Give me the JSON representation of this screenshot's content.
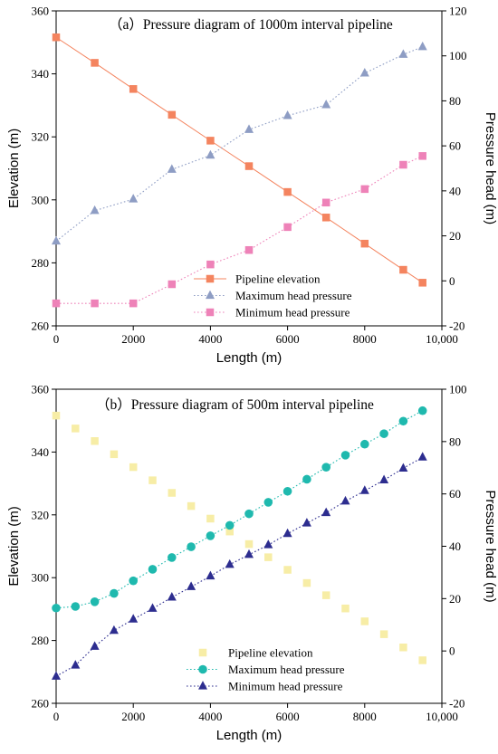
{
  "chart_data": [
    {
      "type": "line",
      "title": "（a）Pressure diagram of 1000m interval pipeline",
      "xlabel": "Length (m)",
      "ylabel_left": "Elevation (m)",
      "ylabel_right": "Pressure head (m)",
      "xlim": [
        0,
        10000
      ],
      "ylim_left": [
        260,
        360
      ],
      "ylim_right": [
        -20,
        120
      ],
      "x_ticks": [
        "0",
        "2000",
        "4000",
        "6000",
        "8000",
        "10,000"
      ],
      "y_left_ticks": [
        "260",
        "280",
        "300",
        "320",
        "340",
        "360"
      ],
      "y_right_ticks": [
        "-20",
        "0",
        "20",
        "40",
        "60",
        "80",
        "100",
        "120"
      ],
      "grid": false,
      "legend_position": "bottom-right",
      "series": [
        {
          "name": "Pipeline elevation",
          "axis": "left",
          "marker": "square",
          "color": "#F4845F",
          "line": "solid",
          "x": [
            0,
            1000,
            2000,
            3000,
            4000,
            5000,
            6000,
            7000,
            8000,
            9000,
            9500
          ],
          "y": [
            351.6,
            343.5,
            335.2,
            327.0,
            318.8,
            310.7,
            302.5,
            294.4,
            286.1,
            277.8,
            273.7
          ]
        },
        {
          "name": "Maximum head pressure",
          "axis": "right",
          "marker": "triangle",
          "color": "#8E9DC4",
          "line": "dotted",
          "x": [
            0,
            1000,
            2000,
            3000,
            4000,
            5000,
            6000,
            7000,
            8000,
            9000,
            9500
          ],
          "y": [
            17.6,
            31.2,
            36.3,
            49.5,
            55.8,
            67.2,
            73.4,
            78.2,
            92.3,
            100.6,
            104.0
          ]
        },
        {
          "name": "Minimum head pressure",
          "axis": "right",
          "marker": "square",
          "color": "#EE82B8",
          "line": "dotted",
          "x": [
            0,
            1000,
            2000,
            3000,
            4000,
            5000,
            6000,
            7000,
            8000,
            9000,
            9500
          ],
          "y": [
            -10.0,
            -10.0,
            -10.0,
            -1.5,
            7.3,
            13.7,
            23.9,
            34.8,
            40.8,
            51.6,
            55.5
          ]
        }
      ]
    },
    {
      "type": "line",
      "title": "（b）Pressure diagram of 500m interval pipeline",
      "xlabel": "Length (m)",
      "ylabel_left": "Elevation (m)",
      "ylabel_right": "Pressure head (m)",
      "xlim": [
        0,
        10000
      ],
      "ylim_left": [
        260,
        360
      ],
      "ylim_right": [
        -20,
        100
      ],
      "x_ticks": [
        "0",
        "2000",
        "4000",
        "6000",
        "8000",
        "10,000"
      ],
      "y_left_ticks": [
        "260",
        "280",
        "300",
        "320",
        "340",
        "360"
      ],
      "y_right_ticks": [
        "-20",
        "0",
        "20",
        "40",
        "60",
        "80",
        "100"
      ],
      "grid": false,
      "legend_position": "bottom-center",
      "series": [
        {
          "name": "Pipeline elevation",
          "axis": "left",
          "marker": "square",
          "color": "#F7EDA6",
          "line": "none",
          "x": [
            0,
            500,
            1000,
            1500,
            2000,
            2500,
            3000,
            3500,
            4000,
            4500,
            5000,
            5500,
            6000,
            6500,
            7000,
            7500,
            8000,
            8500,
            9000,
            9500
          ],
          "y": [
            351.6,
            347.5,
            343.5,
            339.3,
            335.2,
            331.0,
            327.0,
            322.8,
            318.8,
            314.7,
            310.7,
            306.5,
            302.5,
            298.3,
            294.4,
            290.2,
            286.1,
            282.0,
            277.8,
            273.7
          ]
        },
        {
          "name": "Maximum head pressure",
          "axis": "right",
          "marker": "circle",
          "color": "#1FB9AE",
          "line": "dotted",
          "x": [
            0,
            500,
            1000,
            1500,
            2000,
            2500,
            3000,
            3500,
            4000,
            4500,
            5000,
            5500,
            6000,
            6500,
            7000,
            7500,
            8000,
            8500,
            9000,
            9500
          ],
          "y": [
            16.4,
            17.0,
            18.8,
            22.0,
            26.8,
            31.2,
            35.7,
            39.8,
            44.0,
            48.0,
            52.4,
            56.8,
            61.0,
            65.6,
            70.2,
            74.8,
            79.0,
            83.0,
            87.8,
            91.8
          ]
        },
        {
          "name": "Minimum head pressure",
          "axis": "right",
          "marker": "triangle",
          "color": "#2D2D8F",
          "line": "dotted",
          "x": [
            0,
            500,
            1000,
            1500,
            2000,
            2500,
            3000,
            3500,
            4000,
            4500,
            5000,
            5500,
            6000,
            6500,
            7000,
            7500,
            8000,
            8500,
            9000,
            9500
          ],
          "y": [
            -9.7,
            -5.5,
            1.7,
            7.8,
            12.1,
            16.2,
            20.5,
            24.5,
            28.6,
            33.0,
            36.8,
            40.5,
            44.8,
            48.8,
            52.8,
            57.2,
            61.2,
            65.3,
            69.8,
            74.0
          ]
        }
      ]
    }
  ]
}
